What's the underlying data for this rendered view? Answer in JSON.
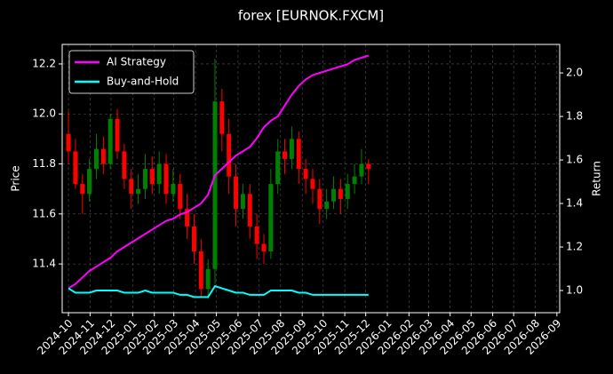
{
  "chart_data": {
    "type": "candlestick",
    "title": "forex [EURNOK.FXCM]",
    "ylabel": "Price",
    "y2label": "Return",
    "xlim": [
      -9,
      704
    ],
    "xticks": [
      {
        "value": 0,
        "label": "2024-10"
      },
      {
        "value": 31,
        "label": "2024-11"
      },
      {
        "value": 61,
        "label": "2024-12"
      },
      {
        "value": 92,
        "label": "2025-01"
      },
      {
        "value": 123,
        "label": "2025-02"
      },
      {
        "value": 151,
        "label": "2025-03"
      },
      {
        "value": 182,
        "label": "2025-04"
      },
      {
        "value": 212,
        "label": "2025-05"
      },
      {
        "value": 243,
        "label": "2025-06"
      },
      {
        "value": 273,
        "label": "2025-07"
      },
      {
        "value": 304,
        "label": "2025-08"
      },
      {
        "value": 335,
        "label": "2025-09"
      },
      {
        "value": 365,
        "label": "2025-10"
      },
      {
        "value": 396,
        "label": "2025-11"
      },
      {
        "value": 426,
        "label": "2025-12"
      },
      {
        "value": 457,
        "label": "2026-01"
      },
      {
        "value": 488,
        "label": "2026-02"
      },
      {
        "value": 516,
        "label": "2026-03"
      },
      {
        "value": 547,
        "label": "2026-04"
      },
      {
        "value": 577,
        "label": "2026-05"
      },
      {
        "value": 608,
        "label": "2026-06"
      },
      {
        "value": 638,
        "label": "2026-07"
      },
      {
        "value": 669,
        "label": "2026-08"
      },
      {
        "value": 700,
        "label": "2026-09"
      }
    ],
    "ylim": [
      11.205,
      12.278
    ],
    "yticks": [
      11.4,
      11.6,
      {
        "value": 11.8,
        "label": "11.8"
      },
      {
        "value": 12.0,
        "label": "12.0"
      },
      12.2
    ],
    "y2lim": [
      0.898,
      2.131
    ],
    "y2ticks": [
      {
        "value": 1.0,
        "label": "1.0"
      },
      1.2,
      1.4,
      1.6,
      1.8,
      {
        "value": 2.0,
        "label": "2.0"
      }
    ],
    "grid": true,
    "legend": "upper left",
    "up_color": "#008000",
    "down_color": "#ff0000",
    "x": [
      0,
      10,
      20,
      30,
      40,
      50,
      60,
      70,
      80,
      90,
      100,
      110,
      120,
      130,
      140,
      150,
      160,
      170,
      180,
      190,
      200,
      210,
      220,
      230,
      240,
      250,
      260,
      270,
      280,
      290,
      300,
      310,
      320,
      330,
      340,
      350,
      360,
      370,
      380,
      390,
      400,
      410,
      420,
      430
    ],
    "open": [
      11.92,
      11.85,
      11.72,
      11.68,
      11.78,
      11.86,
      11.8,
      11.98,
      11.85,
      11.74,
      11.68,
      11.7,
      11.78,
      11.72,
      11.8,
      11.68,
      11.72,
      11.62,
      11.55,
      11.45,
      11.3,
      11.38,
      12.05,
      11.92,
      11.75,
      11.62,
      11.68,
      11.55,
      11.48,
      11.45,
      11.72,
      11.85,
      11.82,
      11.9,
      11.78,
      11.74,
      11.7,
      11.62,
      11.65,
      11.7,
      11.66,
      11.72,
      11.75,
      11.8
    ],
    "high": [
      12.01,
      11.9,
      11.76,
      11.82,
      11.92,
      11.91,
      12.0,
      12.02,
      11.88,
      11.78,
      11.76,
      11.84,
      11.83,
      11.85,
      11.84,
      11.78,
      11.76,
      11.68,
      11.6,
      11.5,
      11.42,
      12.22,
      12.1,
      11.98,
      11.8,
      11.72,
      11.72,
      11.6,
      11.52,
      11.78,
      11.9,
      11.9,
      11.95,
      11.93,
      11.82,
      11.78,
      11.74,
      11.7,
      11.75,
      11.74,
      11.76,
      11.8,
      11.86,
      11.82
    ],
    "low": [
      11.8,
      11.7,
      11.6,
      11.65,
      11.74,
      11.76,
      11.78,
      11.82,
      11.7,
      11.62,
      11.64,
      11.66,
      11.68,
      11.68,
      11.64,
      11.65,
      11.58,
      11.5,
      11.4,
      11.27,
      11.26,
      11.32,
      11.85,
      11.68,
      11.55,
      11.58,
      11.5,
      11.42,
      11.4,
      11.42,
      11.68,
      11.76,
      11.78,
      11.72,
      11.68,
      11.64,
      11.56,
      11.58,
      11.62,
      11.6,
      11.62,
      11.68,
      11.72,
      11.72
    ],
    "close": [
      11.85,
      11.72,
      11.68,
      11.78,
      11.86,
      11.8,
      11.98,
      11.85,
      11.74,
      11.68,
      11.7,
      11.78,
      11.72,
      11.8,
      11.68,
      11.72,
      11.62,
      11.55,
      11.45,
      11.3,
      11.38,
      12.05,
      11.92,
      11.75,
      11.62,
      11.68,
      11.55,
      11.48,
      11.45,
      11.72,
      11.85,
      11.82,
      11.9,
      11.78,
      11.74,
      11.7,
      11.62,
      11.65,
      11.7,
      11.66,
      11.72,
      11.75,
      11.8,
      11.78
    ],
    "series": [
      {
        "name": "AI Strategy",
        "color": "#ff00ff",
        "axis": "y2",
        "values": [
          1.01,
          1.03,
          1.06,
          1.09,
          1.11,
          1.13,
          1.15,
          1.18,
          1.2,
          1.22,
          1.24,
          1.26,
          1.28,
          1.3,
          1.32,
          1.33,
          1.35,
          1.36,
          1.38,
          1.4,
          1.44,
          1.53,
          1.56,
          1.59,
          1.62,
          1.64,
          1.66,
          1.7,
          1.75,
          1.78,
          1.8,
          1.85,
          1.9,
          1.94,
          1.97,
          1.99,
          2.0,
          2.01,
          2.02,
          2.03,
          2.04,
          2.06,
          2.07,
          2.08
        ]
      },
      {
        "name": "Buy-and-Hold",
        "color": "#00ffff",
        "axis": "y2",
        "values": [
          1.01,
          0.99,
          0.99,
          0.99,
          1.0,
          1.0,
          1.0,
          1.0,
          0.99,
          0.99,
          0.99,
          1.0,
          0.99,
          0.99,
          0.99,
          0.99,
          0.98,
          0.98,
          0.97,
          0.97,
          0.97,
          1.02,
          1.01,
          1.0,
          0.99,
          0.99,
          0.98,
          0.98,
          0.98,
          1.0,
          1.0,
          1.0,
          1.0,
          0.99,
          0.99,
          0.98,
          0.98,
          0.98,
          0.98,
          0.98,
          0.98,
          0.98,
          0.98,
          0.98
        ]
      }
    ]
  }
}
